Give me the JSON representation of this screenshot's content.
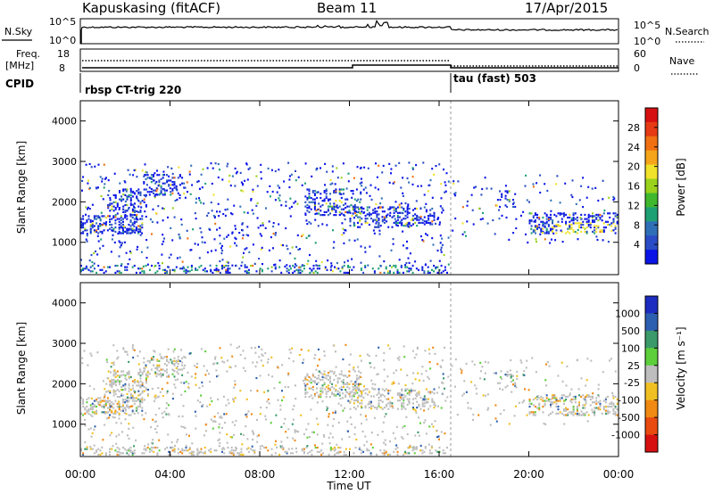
{
  "header": {
    "station": "Kapuskasing (fitACF)",
    "beam": "Beam 11",
    "date": "17/Apr/2015"
  },
  "noise_panel": {
    "left_label": "N.Sky",
    "left_ticks": [
      "10^5",
      "10^0"
    ],
    "right_ticks": [
      "10^5",
      "10^0"
    ],
    "right_label": "N.Search"
  },
  "freq_panel": {
    "left_label_1": "Freq.",
    "left_label_2": "[MHz]",
    "left_ticks": [
      "18",
      "8"
    ],
    "right_ticks": [
      "60",
      "0"
    ],
    "right_label": "Nave"
  },
  "cpid": {
    "label": "CPID",
    "mode1": "rbsp CT-trig 220",
    "mode2": "tau (fast) 503"
  },
  "chart_data": [
    {
      "type": "heatmap",
      "name": "power",
      "ylabel": "Slant Range [km]",
      "xlabel": "Time UT",
      "x_ticks": [
        "00:00",
        "04:00",
        "08:00",
        "12:00",
        "16:00",
        "20:00",
        "00:00"
      ],
      "y_ticks": [
        "1000",
        "2000",
        "3000",
        "4000"
      ],
      "ylim": [
        200,
        4500
      ],
      "xlim_hours": [
        0,
        24
      ],
      "colorbar_label": "Power [dB]",
      "colorbar_ticks": [
        "4",
        "8",
        "12",
        "16",
        "20",
        "24",
        "28"
      ],
      "colors": [
        "#0a14e6",
        "#2a4cc6",
        "#2f6fb8",
        "#1fa074",
        "#40b82e",
        "#9ad21c",
        "#f0e12a",
        "#f5a51a",
        "#f07012",
        "#e63a14",
        "#d61010"
      ]
    },
    {
      "type": "heatmap",
      "name": "velocity",
      "ylabel": "Slant Range [km]",
      "xlabel": "Time UT",
      "x_ticks": [
        "00:00",
        "04:00",
        "08:00",
        "12:00",
        "16:00",
        "20:00",
        "00:00"
      ],
      "y_ticks": [
        "1000",
        "2000",
        "3000",
        "4000"
      ],
      "ylim": [
        200,
        4500
      ],
      "xlim_hours": [
        0,
        24
      ],
      "colorbar_label": "Velocity [m s⁻¹]",
      "colorbar_ticks": [
        "1000",
        "500",
        "100",
        "25",
        "-25",
        "-100",
        "-500",
        "-1000"
      ],
      "colors": [
        "#1c2cc0",
        "#2d5fb0",
        "#3a9a6a",
        "#5ccf3a",
        "#bebebe",
        "#f0c022",
        "#f08a12",
        "#e84a10",
        "#d61010"
      ]
    }
  ],
  "xaxis_title": "Time UT"
}
